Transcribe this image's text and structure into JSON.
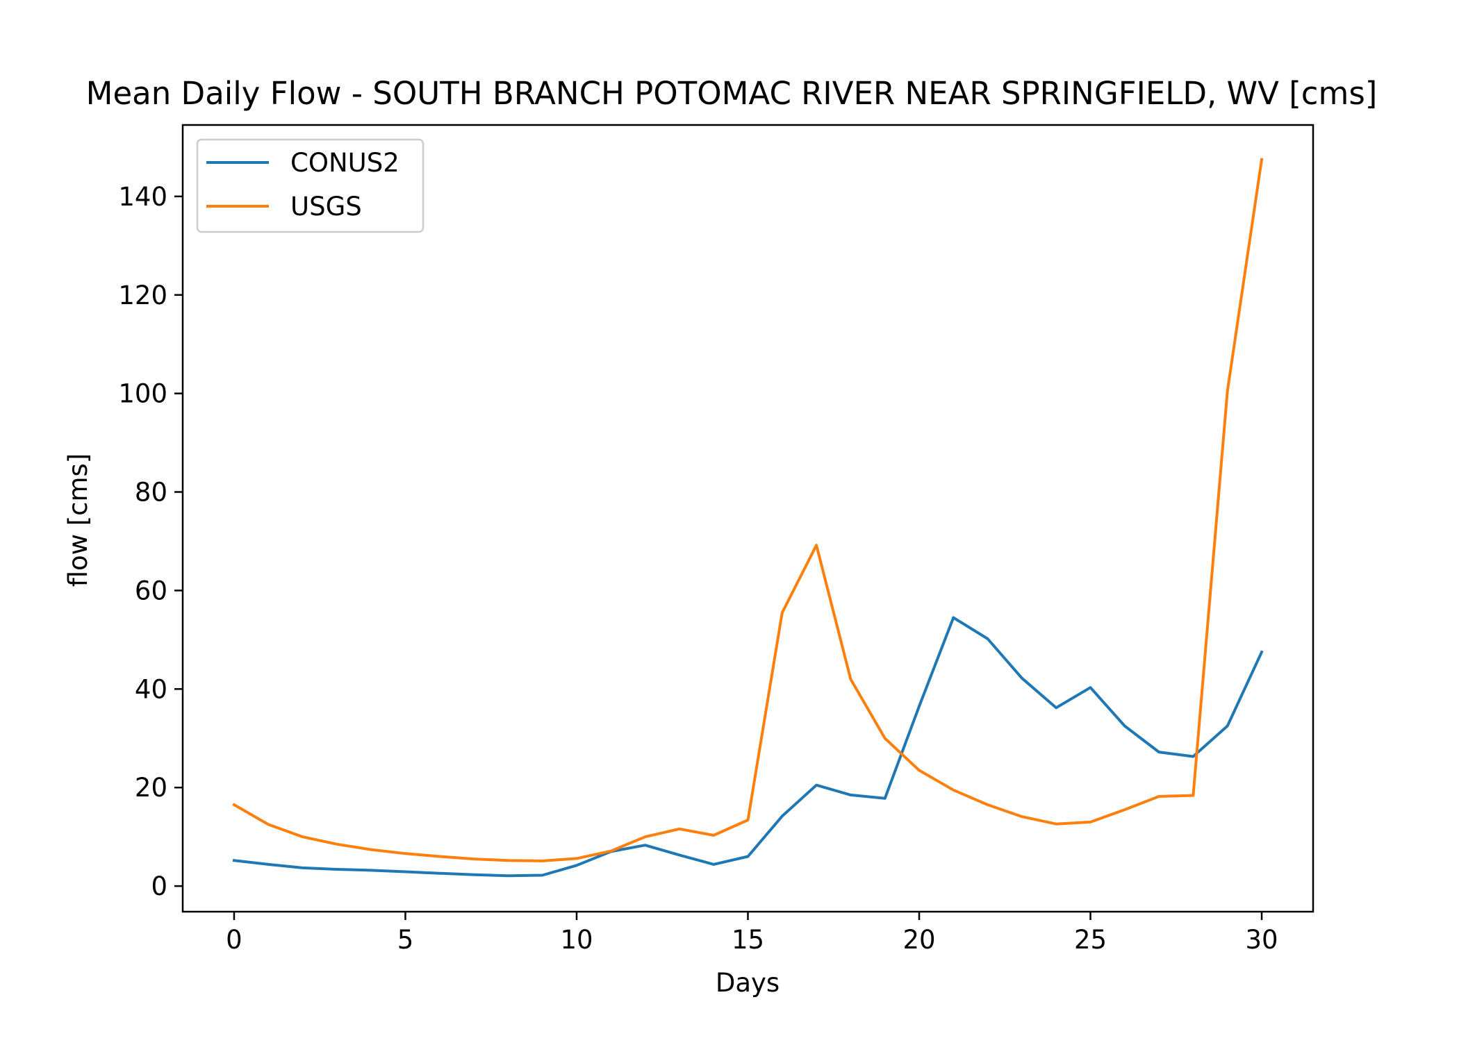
{
  "chart_data": {
    "type": "line",
    "title": "Mean Daily Flow - SOUTH BRANCH POTOMAC RIVER NEAR SPRINGFIELD, WV [cms]",
    "xlabel": "Days",
    "ylabel": "flow [cms]",
    "xlim": [
      -1.5,
      31.5
    ],
    "ylim": [
      -5.2,
      154.5
    ],
    "xticks": [
      0,
      5,
      10,
      15,
      20,
      25,
      30
    ],
    "yticks": [
      0,
      20,
      40,
      60,
      80,
      100,
      120,
      140
    ],
    "grid": false,
    "legend_position": "top-left",
    "x": [
      0,
      1,
      2,
      3,
      4,
      5,
      6,
      7,
      8,
      9,
      10,
      11,
      12,
      13,
      14,
      15,
      16,
      17,
      18,
      19,
      20,
      21,
      22,
      23,
      24,
      25,
      26,
      27,
      28,
      29,
      30
    ],
    "series": [
      {
        "name": "CONUS2",
        "color": "#1f77b4",
        "values": [
          5.2,
          4.4,
          3.7,
          3.4,
          3.2,
          2.9,
          2.6,
          2.3,
          2.1,
          2.2,
          4.2,
          7.0,
          8.3,
          6.3,
          4.4,
          6.0,
          14.2,
          20.5,
          18.5,
          17.8,
          36.5,
          54.5,
          50.2,
          42.2,
          36.2,
          40.3,
          32.5,
          27.2,
          26.3,
          32.5,
          47.5
        ]
      },
      {
        "name": "USGS",
        "color": "#ff7f0e",
        "values": [
          16.5,
          12.5,
          10.0,
          8.5,
          7.4,
          6.6,
          6.0,
          5.5,
          5.2,
          5.1,
          5.6,
          7.1,
          10.0,
          11.6,
          10.3,
          13.4,
          55.5,
          69.2,
          42.0,
          30.0,
          23.5,
          19.5,
          16.5,
          14.1,
          12.6,
          13.0,
          15.5,
          18.2,
          18.4,
          100.5,
          147.5
        ]
      }
    ]
  }
}
